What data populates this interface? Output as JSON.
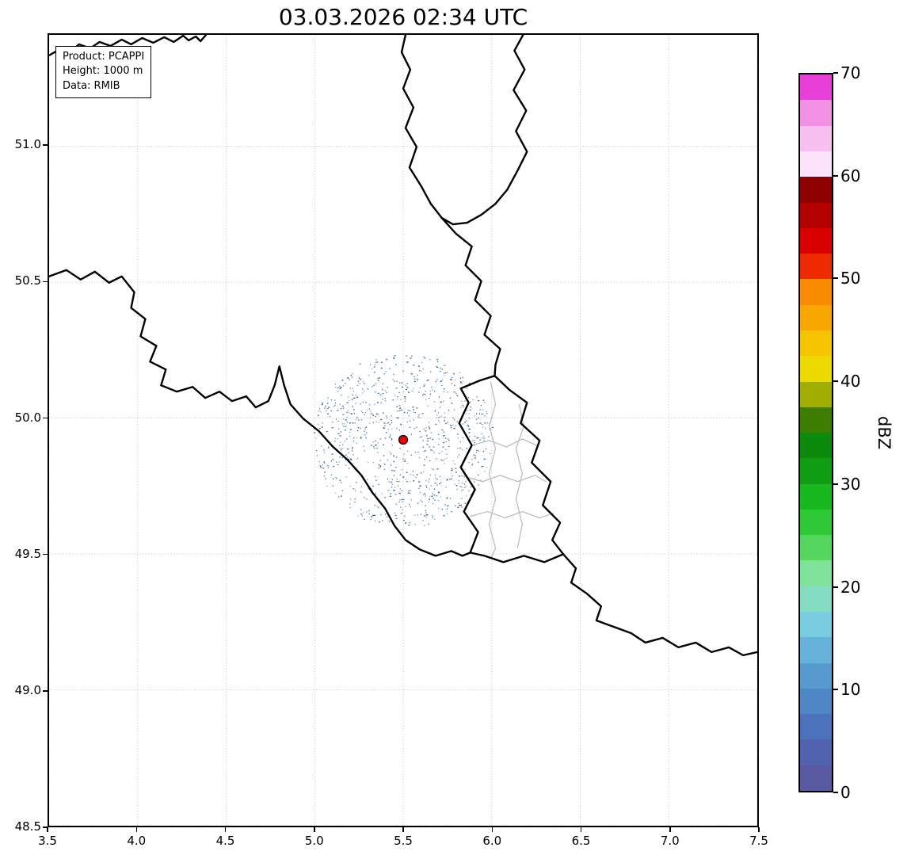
{
  "annotation_box": {
    "lines": [
      "Product: PCAPPI",
      "Height: 1000 m",
      "Data: RMIB"
    ]
  },
  "chart_data": {
    "type": "heatmap",
    "title": "03.03.2026 02:34 UTC",
    "xlabel": "",
    "ylabel": "",
    "xlim": [
      3.5,
      7.5
    ],
    "ylim": [
      48.5,
      51.41
    ],
    "x_ticks": [
      "3.5",
      "4.0",
      "4.5",
      "5.0",
      "5.5",
      "6.0",
      "6.5",
      "7.0",
      "7.5"
    ],
    "y_ticks": [
      "48.5",
      "49.0",
      "49.5",
      "50.0",
      "50.5",
      "51.0"
    ],
    "grid": true,
    "map_region": "Belgium / Luxembourg area with national borders (black) and Luxembourg canton borders (gray)",
    "radar_site": {
      "lon": 5.5,
      "lat": 49.92,
      "marker_color": "#e10600"
    },
    "echo_field": {
      "description": "sparse low-intensity clutter speckles (about 0-10 dBZ) in concentric rings around the radar site",
      "center_lon": 5.5,
      "center_lat": 49.92,
      "radius_deg": 0.33,
      "dot_color": "#2b5a85",
      "dot_count": 950,
      "seed": 7
    },
    "colorbar": {
      "label": "dBZ",
      "min": 0,
      "max": 70,
      "ticks": [
        0,
        10,
        20,
        30,
        40,
        50,
        60,
        70
      ],
      "band_size_dbz": 2.5,
      "colors_bottom_to_top": [
        "#5a5aa2",
        "#5163ae",
        "#4d72bc",
        "#4f86c6",
        "#579ad0",
        "#66b2da",
        "#79cde0",
        "#84ddc3",
        "#7fe29a",
        "#55d75f",
        "#2fc937",
        "#17b91f",
        "#0f9d13",
        "#0b8a0b",
        "#3d7e00",
        "#9fae00",
        "#ecd900",
        "#f5c400",
        "#f8a600",
        "#f98b00",
        "#ef2a00",
        "#d90000",
        "#b50000",
        "#8e0000",
        "#fbe4f9",
        "#f8c0f0",
        "#f392e4",
        "#e93fd9"
      ]
    }
  }
}
